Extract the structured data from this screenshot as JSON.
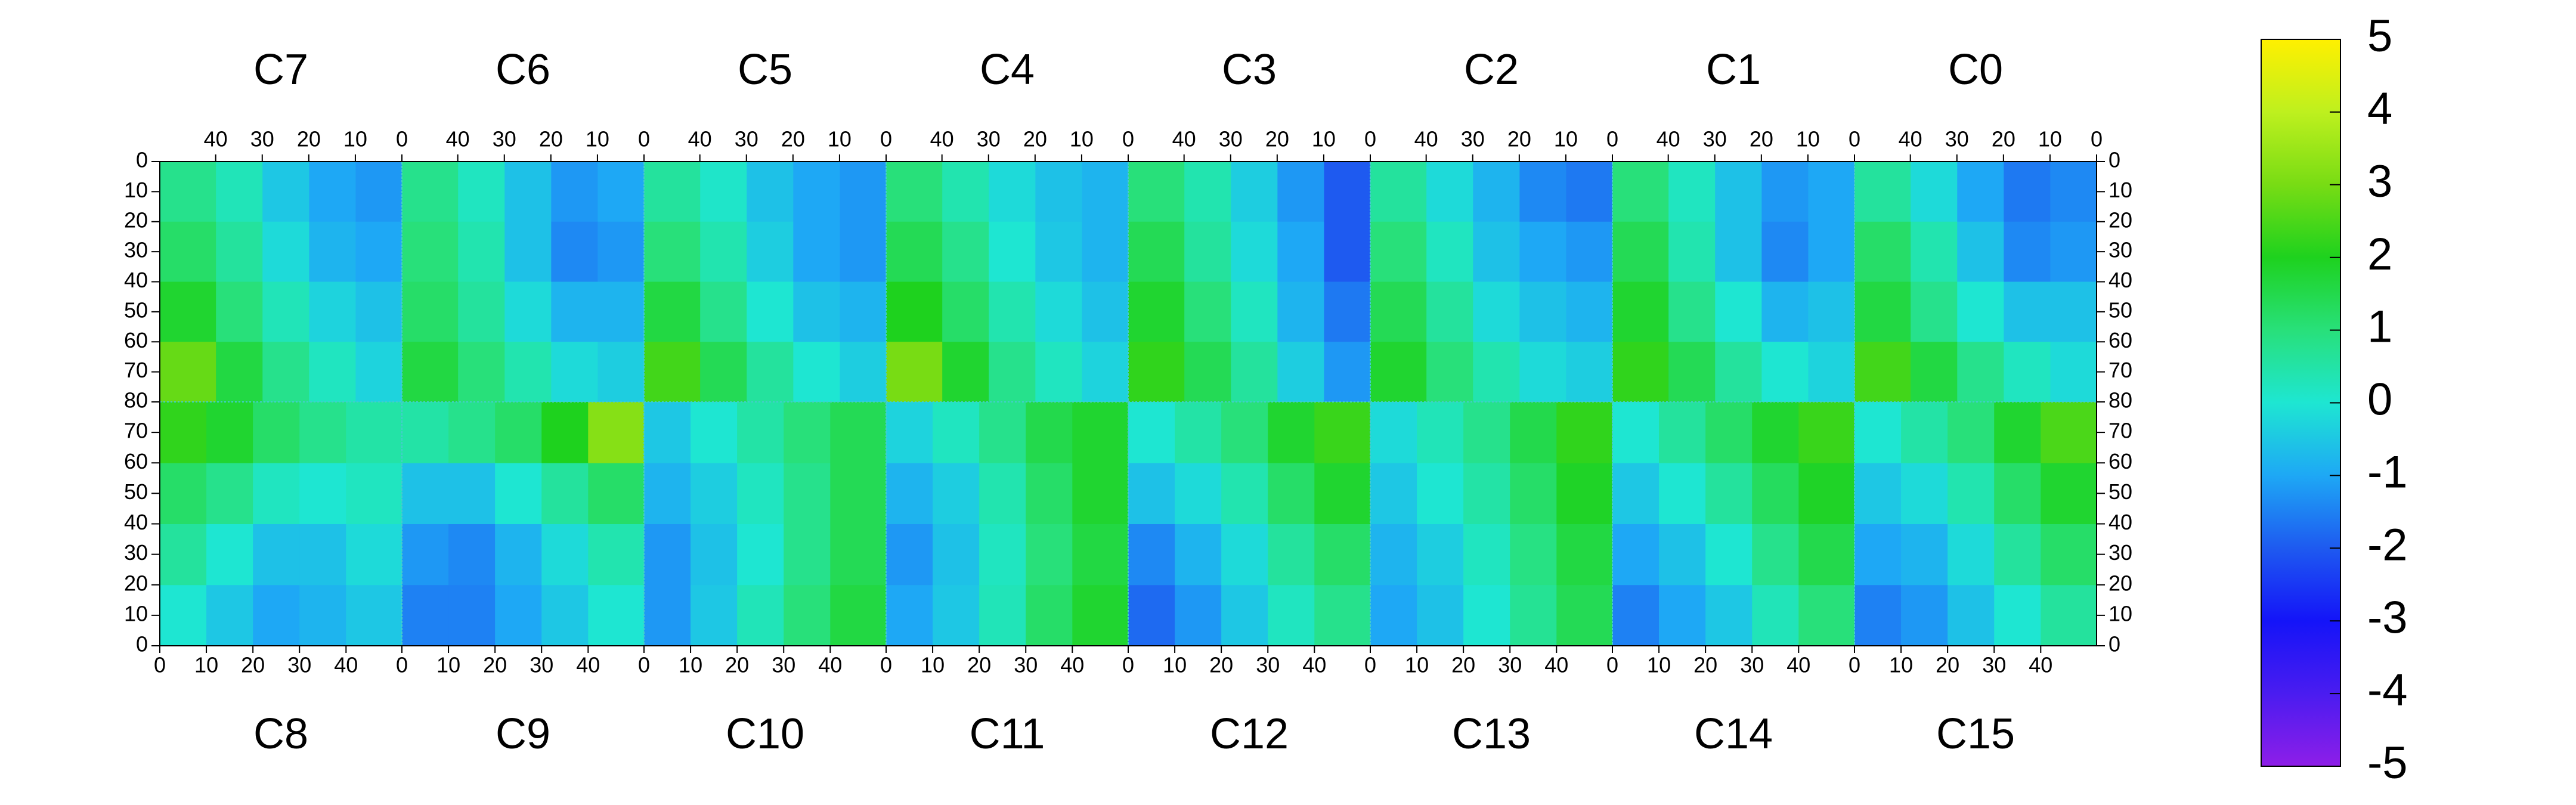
{
  "chart_data": {
    "type": "heatmap",
    "zlim": [
      -5,
      5
    ],
    "zticks": [
      -5,
      -4,
      -3,
      -2,
      -1,
      0,
      1,
      2,
      3,
      4,
      5
    ],
    "colorscale": [
      "#8e1ee8",
      "#4a1cf0",
      "#1414f8",
      "#1e5af0",
      "#1ea8f5",
      "#1ee6d2",
      "#28e07a",
      "#1ed21e",
      "#78dc14",
      "#bef01e",
      "#fff000"
    ],
    "rows": [
      {
        "xlim": [
          52,
          0
        ],
        "ylim": [
          80,
          0
        ],
        "xticks": [
          40,
          30,
          20,
          10,
          0
        ],
        "yticks": [
          0,
          10,
          20,
          30,
          40,
          50,
          60,
          70,
          80
        ],
        "xbins": [
          0,
          10,
          20,
          30,
          40,
          52
        ],
        "ybins": [
          0,
          20,
          40,
          60,
          80
        ],
        "panels": [
          {
            "title": "C7",
            "z": [
              [
                -1.2,
                -1,
                -0.5,
                0.3,
                0.8
              ],
              [
                -1,
                -0.8,
                -0.2,
                0.6,
                1.2
              ],
              [
                -0.6,
                -0.3,
                0.3,
                1,
                1.8
              ],
              [
                -0.3,
                0.2,
                0.8,
                1.6,
                2.8
              ]
            ]
          },
          {
            "title": "C6",
            "z": [
              [
                -1,
                -1.2,
                -0.6,
                0.2,
                0.8
              ],
              [
                -1.2,
                -1.4,
                -0.6,
                0.4,
                1
              ],
              [
                -0.8,
                -0.8,
                -0.2,
                0.6,
                1.2
              ],
              [
                -0.4,
                -0.2,
                0.4,
                1,
                1.6
              ]
            ]
          },
          {
            "title": "C5",
            "z": [
              [
                -1.2,
                -1,
                -0.6,
                0.1,
                0.6
              ],
              [
                -1.2,
                -1,
                -0.4,
                0.4,
                1
              ],
              [
                -0.8,
                -0.6,
                0,
                0.8,
                1.6
              ],
              [
                -0.4,
                0,
                0.6,
                1.4,
                2.4
              ]
            ]
          },
          {
            "title": "C4",
            "z": [
              [
                -0.8,
                -0.6,
                -0.2,
                0.4,
                1
              ],
              [
                -0.8,
                -0.5,
                0,
                0.8,
                1.4
              ],
              [
                -0.6,
                -0.2,
                0.4,
                1.2,
                2
              ],
              [
                -0.3,
                0.2,
                0.8,
                1.8,
                3
              ]
            ]
          },
          {
            "title": "C3",
            "z": [
              [
                -2,
                -1.2,
                -0.4,
                0.4,
                1
              ],
              [
                -2,
                -1,
                -0.2,
                0.6,
                1.4
              ],
              [
                -1.6,
                -0.8,
                0.2,
                1,
                1.8
              ],
              [
                -1.2,
                -0.4,
                0.6,
                1.4,
                2.2
              ]
            ]
          },
          {
            "title": "C2",
            "z": [
              [
                -1.6,
                -1.4,
                -0.8,
                -0.2,
                0.6
              ],
              [
                -1.2,
                -1,
                -0.6,
                0.2,
                1
              ],
              [
                -0.8,
                -0.6,
                -0.2,
                0.6,
                1.4
              ],
              [
                -0.4,
                -0.2,
                0.4,
                1,
                1.8
              ]
            ]
          },
          {
            "title": "C1",
            "z": [
              [
                -1,
                -1.2,
                -0.6,
                0.2,
                1
              ],
              [
                -1,
                -1.4,
                -0.6,
                0.4,
                1.4
              ],
              [
                -0.6,
                -0.8,
                0,
                0.8,
                1.8
              ],
              [
                -0.3,
                0,
                0.6,
                1.4,
                2.2
              ]
            ]
          },
          {
            "title": "C0",
            "z": [
              [
                -1.4,
                -1.6,
                -1,
                -0.2,
                0.6
              ],
              [
                -1.2,
                -1.4,
                -0.6,
                0.4,
                1.2
              ],
              [
                -0.6,
                -0.6,
                0,
                0.8,
                1.6
              ],
              [
                -0.2,
                0.2,
                0.8,
                1.6,
                2.4
              ]
            ]
          }
        ]
      },
      {
        "xlim": [
          0,
          52
        ],
        "ylim": [
          0,
          80
        ],
        "xticks": [
          0,
          10,
          20,
          30,
          40
        ],
        "yticks": [
          0,
          10,
          20,
          30,
          40,
          50,
          60,
          70
        ],
        "xbins": [
          0,
          10,
          20,
          30,
          40,
          52
        ],
        "ybins": [
          0,
          20,
          40,
          60,
          80
        ],
        "panels": [
          {
            "title": "C8",
            "z": [
              [
                0,
                -0.5,
                -1,
                -0.8,
                -0.5
              ],
              [
                0.6,
                0,
                -0.6,
                -0.6,
                -0.2
              ],
              [
                1.2,
                0.8,
                0.2,
                0,
                0.2
              ],
              [
                2.2,
                1.8,
                1.2,
                0.8,
                0.5
              ]
            ]
          },
          {
            "title": "C9",
            "z": [
              [
                -1.5,
                -1.5,
                -1,
                -0.5,
                0
              ],
              [
                -1.2,
                -1.4,
                -0.8,
                -0.2,
                0.4
              ],
              [
                -0.6,
                -0.6,
                0,
                0.6,
                1.2
              ],
              [
                0.5,
                0.8,
                1.2,
                2,
                3.2
              ]
            ]
          },
          {
            "title": "C10",
            "z": [
              [
                -1.2,
                -0.5,
                0.3,
                1,
                1.6
              ],
              [
                -1.2,
                -0.6,
                0,
                0.8,
                1.4
              ],
              [
                -0.8,
                -0.4,
                0.2,
                0.8,
                1.4
              ],
              [
                -0.5,
                0,
                0.5,
                1,
                1.4
              ]
            ]
          },
          {
            "title": "C11",
            "z": [
              [
                -1,
                -0.5,
                0.3,
                1.2,
                1.8
              ],
              [
                -1.2,
                -0.6,
                0.2,
                1,
                1.6
              ],
              [
                -0.8,
                -0.4,
                0.4,
                1.2,
                1.8
              ],
              [
                -0.3,
                0.2,
                0.8,
                1.5,
                1.8
              ]
            ]
          },
          {
            "title": "C12",
            "z": [
              [
                -1.8,
                -1.2,
                -0.5,
                0.2,
                0.8
              ],
              [
                -1.4,
                -0.8,
                -0.2,
                0.6,
                1.2
              ],
              [
                -0.6,
                -0.2,
                0.4,
                1.2,
                1.8
              ],
              [
                0,
                0.5,
                1,
                1.8,
                2.3
              ]
            ]
          },
          {
            "title": "C13",
            "z": [
              [
                -1,
                -0.6,
                0,
                0.7,
                1.4
              ],
              [
                -0.8,
                -0.4,
                0.2,
                0.9,
                1.6
              ],
              [
                -0.5,
                0,
                0.5,
                1.2,
                1.9
              ],
              [
                -0.2,
                0.3,
                0.8,
                1.5,
                2.2
              ]
            ]
          },
          {
            "title": "C14",
            "z": [
              [
                -1.5,
                -1,
                -0.5,
                0.3,
                1
              ],
              [
                -1,
                -0.6,
                0,
                0.8,
                1.5
              ],
              [
                -0.5,
                0,
                0.6,
                1.3,
                1.9
              ],
              [
                0,
                0.6,
                1.2,
                1.8,
                2.3
              ]
            ]
          },
          {
            "title": "C15",
            "z": [
              [
                -1.5,
                -1.2,
                -0.6,
                0,
                0.6
              ],
              [
                -1,
                -0.8,
                -0.2,
                0.6,
                1.2
              ],
              [
                -0.5,
                -0.2,
                0.4,
                1.2,
                1.8
              ],
              [
                0,
                0.5,
                1,
                1.8,
                2.5
              ]
            ]
          }
        ]
      }
    ]
  }
}
